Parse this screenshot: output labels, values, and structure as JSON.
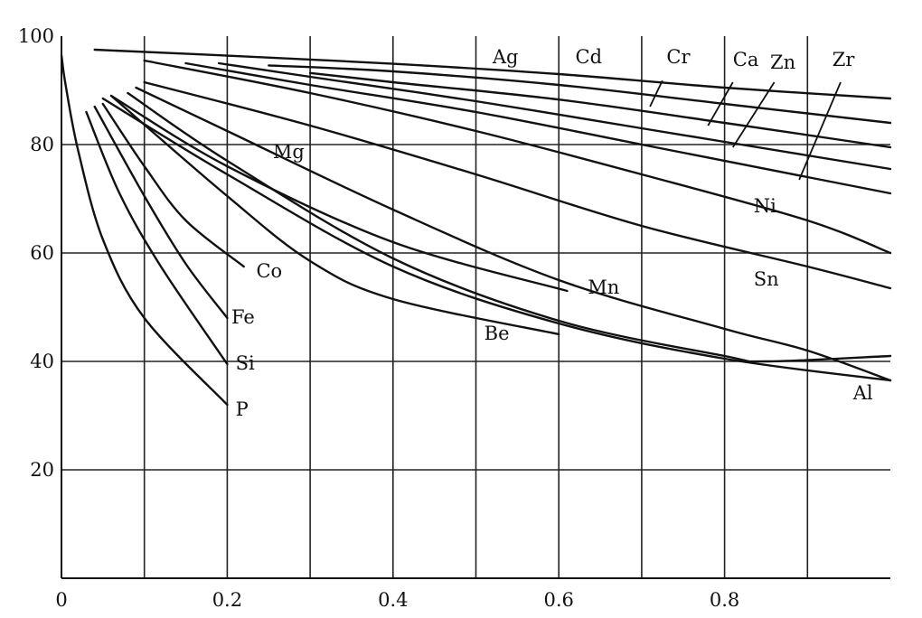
{
  "chart_data": {
    "type": "line",
    "title": "",
    "xlabel": "",
    "ylabel": "",
    "xlim": [
      0,
      1.0
    ],
    "ylim": [
      0,
      100
    ],
    "x_ticks": [
      0,
      0.2,
      0.4,
      0.6,
      0.8
    ],
    "x_tick_labels": [
      "0",
      "0.2",
      "0.4",
      "0.6",
      "0.8"
    ],
    "y_ticks": [
      20,
      40,
      60,
      80,
      100
    ],
    "y_tick_labels": [
      "20",
      "40",
      "60",
      "80",
      "100"
    ],
    "grid": true,
    "vertical_gridlines": [
      0.1,
      0.2,
      0.3,
      0.4,
      0.5,
      0.6,
      0.7,
      0.8,
      0.9
    ],
    "horizontal_gridlines": [
      20,
      40,
      60,
      80
    ],
    "series": [
      {
        "name": "Ag",
        "x": [
          0.04,
          0.2,
          0.4,
          0.6,
          0.8,
          1.0
        ],
        "y": [
          97.5,
          96.4,
          94.9,
          93.0,
          90.5,
          88.5
        ],
        "label_x": 0.52,
        "label_y": 95.0,
        "leader": [
          0.5,
          94.3,
          0.5,
          94.3
        ]
      },
      {
        "name": "Cd",
        "x": [
          0.25,
          0.4,
          0.6,
          0.8,
          1.0
        ],
        "y": [
          94.6,
          93.5,
          91.0,
          87.5,
          84.0
        ],
        "label_x": 0.62,
        "label_y": 95.0,
        "leader": null
      },
      {
        "name": "Cr",
        "x": [
          0.3,
          0.4,
          0.6,
          0.8,
          1.0
        ],
        "y": [
          93.2,
          91.5,
          88.3,
          84.0,
          79.5
        ],
        "label_x": 0.73,
        "label_y": 95.0,
        "leader": [
          0.725,
          91.8,
          0.71,
          87.0
        ]
      },
      {
        "name": "Ca",
        "x": [
          0.19,
          0.3,
          0.5,
          0.7,
          0.8,
          1.0
        ],
        "y": [
          95.0,
          92.5,
          88.0,
          83.0,
          80.5,
          75.5
        ],
        "label_x": 0.81,
        "label_y": 94.5,
        "leader": [
          0.81,
          91.5,
          0.78,
          83.5
        ]
      },
      {
        "name": "Zn",
        "x": [
          0.15,
          0.3,
          0.5,
          0.7,
          0.9,
          1.0
        ],
        "y": [
          95.0,
          91.0,
          86.0,
          80.0,
          74.0,
          71.0
        ],
        "label_x": 0.855,
        "label_y": 94.0,
        "leader": [
          0.86,
          91.5,
          0.81,
          79.5
        ]
      },
      {
        "name": "Zr",
        "x": [
          0.1,
          0.3,
          0.5,
          0.7,
          0.9,
          1.0
        ],
        "y": [
          95.5,
          89.5,
          82.5,
          74.5,
          66.0,
          60.0
        ],
        "label_x": 0.93,
        "label_y": 94.5,
        "leader": [
          0.94,
          91.5,
          0.89,
          73.5
        ]
      },
      {
        "name": "Ni",
        "x": [
          0.1,
          0.3,
          0.5,
          0.7,
          0.9,
          1.0
        ],
        "y": [
          91.5,
          83.5,
          74.5,
          65.0,
          57.5,
          53.5
        ],
        "label_x": 0.835,
        "label_y": 67.5,
        "leader": null
      },
      {
        "name": "Sn",
        "x": [
          0.09,
          0.2,
          0.4,
          0.6,
          0.8,
          0.9,
          1.0
        ],
        "y": [
          90.5,
          82.5,
          68.0,
          55.0,
          46.0,
          42.0,
          36.5
        ],
        "label_x": 0.835,
        "label_y": 54.0,
        "leader": null
      },
      {
        "name": "Mg",
        "x": [
          0.08,
          0.2,
          0.4,
          0.6,
          0.8,
          0.85,
          1.0
        ],
        "y": [
          89.5,
          77.0,
          59.0,
          47.5,
          41.0,
          40.0,
          41.0
        ],
        "label_x": 0.255,
        "label_y": 77.5,
        "leader": null
      },
      {
        "name": "Mn",
        "x": [
          0.06,
          0.2,
          0.4,
          0.61
        ],
        "y": [
          89.0,
          76.0,
          62.0,
          53.0
        ],
        "label_x": 0.635,
        "label_y": 52.5,
        "leader": null
      },
      {
        "name": "Be",
        "x": [
          0.06,
          0.2,
          0.3,
          0.4,
          0.6
        ],
        "y": [
          89.0,
          70.5,
          58.5,
          51.5,
          45.0
        ],
        "label_x": 0.51,
        "label_y": 44.0,
        "leader": null
      },
      {
        "name": "Al",
        "x": [
          0.05,
          0.2,
          0.4,
          0.6,
          0.8,
          1.0
        ],
        "y": [
          88.5,
          74.5,
          57.5,
          47.0,
          40.5,
          36.5
        ],
        "label_x": 0.955,
        "label_y": 33.0,
        "leader": null
      },
      {
        "name": "Co",
        "x": [
          0.05,
          0.1,
          0.15,
          0.22
        ],
        "y": [
          87.5,
          76.0,
          66.0,
          57.5
        ],
        "label_x": 0.235,
        "label_y": 55.5,
        "leader": null
      },
      {
        "name": "Fe",
        "x": [
          0.04,
          0.1,
          0.15,
          0.2
        ],
        "y": [
          87.0,
          70.5,
          58.0,
          48.0
        ],
        "label_x": 0.205,
        "label_y": 47.0,
        "leader": null
      },
      {
        "name": "Si",
        "x": [
          0.03,
          0.07,
          0.12,
          0.2
        ],
        "y": [
          86.0,
          71.0,
          57.5,
          39.5
        ],
        "label_x": 0.21,
        "label_y": 38.5,
        "leader": null
      },
      {
        "name": "P",
        "x": [
          0.0,
          0.005,
          0.02,
          0.05,
          0.1,
          0.2
        ],
        "y": [
          96.5,
          91.0,
          79.0,
          62.5,
          48.0,
          32.0
        ],
        "label_x": 0.21,
        "label_y": 30.0,
        "leader": null
      }
    ]
  }
}
